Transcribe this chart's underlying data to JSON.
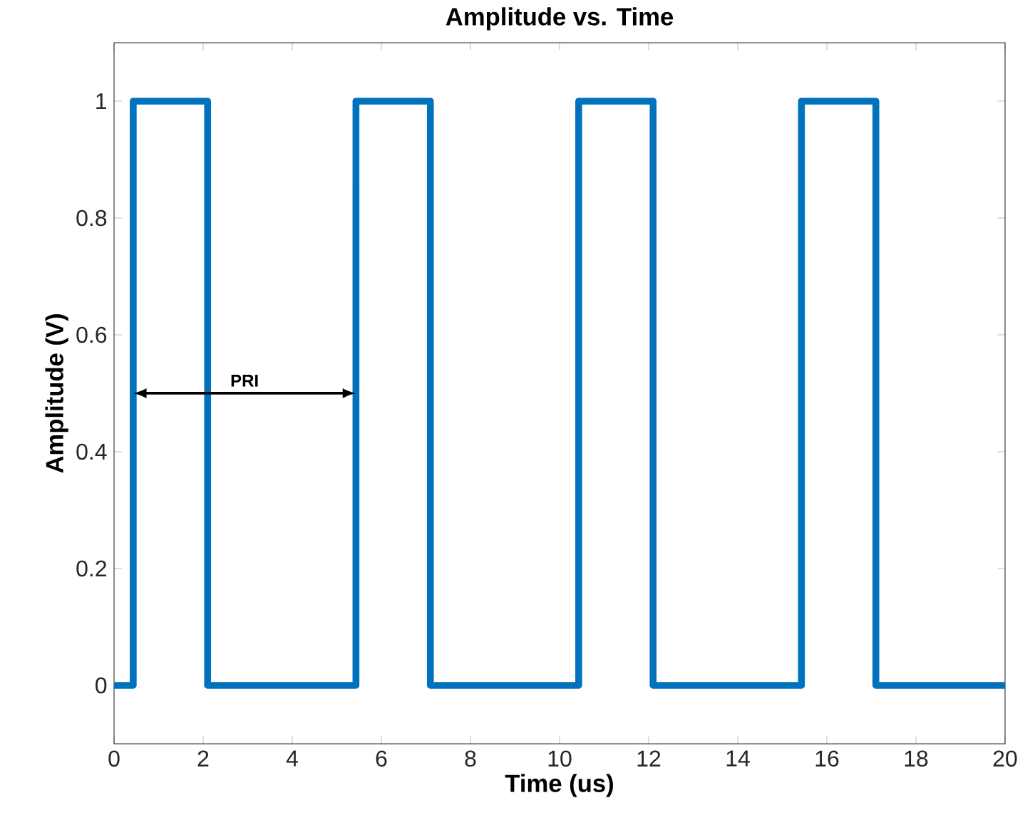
{
  "chart_data": {
    "type": "step",
    "title": "Amplitude vs. Time",
    "xlabel": "Time (us)",
    "ylabel": "Amplitude (V)",
    "x": [
      0,
      0.43,
      2.1,
      5.43,
      7.1,
      10.43,
      12.1,
      15.43,
      17.1,
      20
    ],
    "series": [
      {
        "color": "#0072bd",
        "values": [
          0,
          1,
          0,
          1,
          0,
          1,
          0,
          1,
          0,
          0
        ]
      }
    ],
    "xlim": [
      0,
      20
    ],
    "ylim": [
      -0.1,
      1.1
    ],
    "xticks": [
      0,
      2,
      4,
      6,
      8,
      10,
      12,
      14,
      16,
      18,
      20
    ],
    "yticks": [
      0,
      0.2,
      0.4,
      0.6,
      0.8,
      1
    ],
    "grid": false,
    "annotations": [
      "PRI"
    ]
  }
}
